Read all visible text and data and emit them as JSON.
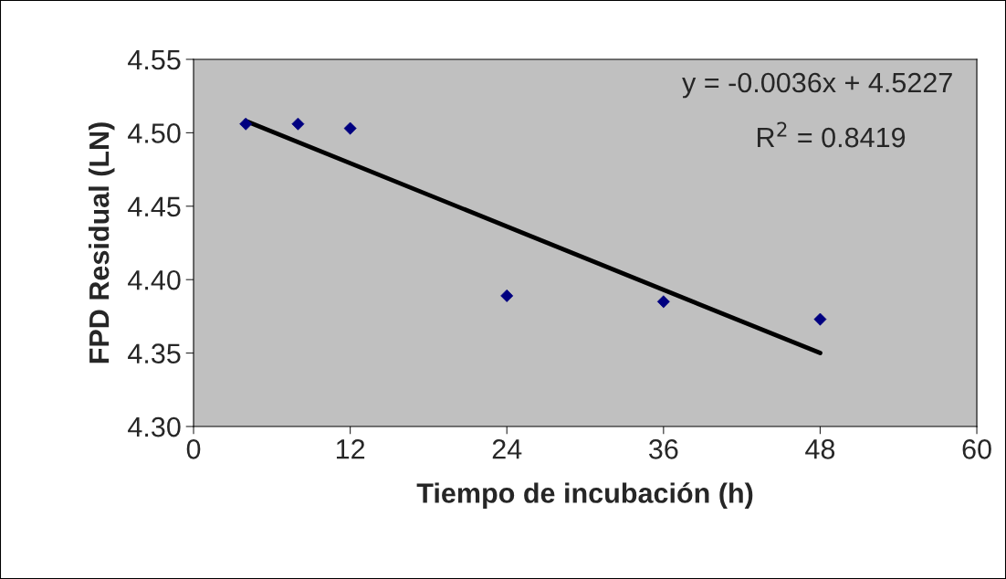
{
  "chart_data": {
    "type": "scatter",
    "xlabel": "Tiempo de incubación (h)",
    "ylabel": "FPD Residual (LN)",
    "x": [
      4,
      8,
      12,
      24,
      36,
      48
    ],
    "series": [
      {
        "color": "#000080",
        "values": [
          4.506,
          4.506,
          4.503,
          4.389,
          4.385,
          4.373
        ],
        "marker": "diamond"
      },
      {
        "type": "line",
        "color": "#000000",
        "x": [
          4,
          48
        ],
        "values": [
          4.508,
          4.35
        ],
        "marker": "none"
      }
    ],
    "annotations": [
      "y = -0.0036x + 4.5227",
      "R$^{2}$ = 0.8419"
    ],
    "xlim": [
      0,
      60
    ],
    "xticks": [
      0,
      12,
      24,
      36,
      48,
      60
    ],
    "ylim": [
      4.3,
      4.55
    ],
    "yticks": [
      {
        "value": 4.3,
        "label": "4.30"
      },
      {
        "value": 4.35,
        "label": "4.35"
      },
      {
        "value": 4.4,
        "label": "4.40"
      },
      {
        "value": 4.45,
        "label": "4.45"
      },
      {
        "value": 4.5,
        "label": "4.50"
      },
      {
        "value": 4.55,
        "label": "4.55"
      }
    ],
    "grid": false,
    "legend": false
  }
}
